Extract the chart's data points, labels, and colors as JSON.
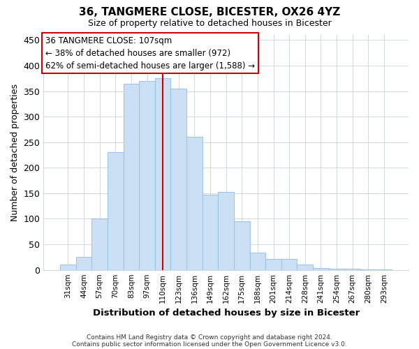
{
  "title": "36, TANGMERE CLOSE, BICESTER, OX26 4YZ",
  "subtitle": "Size of property relative to detached houses in Bicester",
  "xlabel": "Distribution of detached houses by size in Bicester",
  "ylabel": "Number of detached properties",
  "bar_labels": [
    "31sqm",
    "44sqm",
    "57sqm",
    "70sqm",
    "83sqm",
    "97sqm",
    "110sqm",
    "123sqm",
    "136sqm",
    "149sqm",
    "162sqm",
    "175sqm",
    "188sqm",
    "201sqm",
    "214sqm",
    "228sqm",
    "241sqm",
    "254sqm",
    "267sqm",
    "280sqm",
    "293sqm"
  ],
  "bar_values": [
    10,
    25,
    100,
    230,
    365,
    370,
    375,
    355,
    260,
    147,
    153,
    95,
    34,
    22,
    22,
    10,
    4,
    2,
    2,
    1,
    1
  ],
  "bar_color": "#cce0f5",
  "bar_edge_color": "#a0c4e8",
  "highlight_x_label": "110sqm",
  "highlight_color": "#cc0000",
  "annotation_lines": [
    "36 TANGMERE CLOSE: 107sqm",
    "← 38% of detached houses are smaller (972)",
    "62% of semi-detached houses are larger (1,588) →"
  ],
  "annotation_box_color": "#ffffff",
  "annotation_box_edge": "#cc0000",
  "ylim": [
    0,
    460
  ],
  "yticks": [
    0,
    50,
    100,
    150,
    200,
    250,
    300,
    350,
    400,
    450
  ],
  "footer_lines": [
    "Contains HM Land Registry data © Crown copyright and database right 2024.",
    "Contains public sector information licensed under the Open Government Licence v3.0."
  ],
  "bg_color": "#ffffff",
  "grid_color": "#d0d8e0"
}
